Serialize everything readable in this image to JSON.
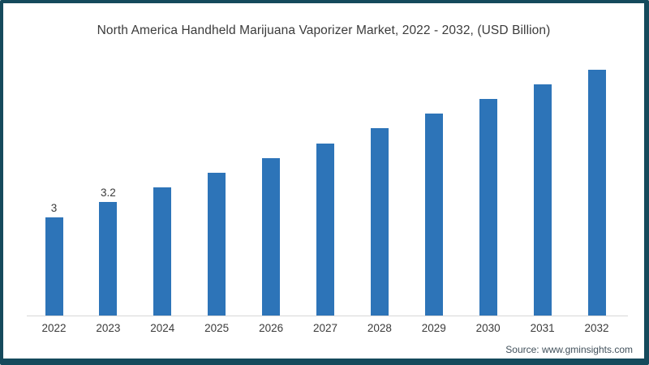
{
  "chart": {
    "title": "North America Handheld Marijuana Vaporizer Market, 2022 - 2032, (USD Billion)",
    "source": "Source: www.gminsights.com"
  },
  "colors": {
    "bar": "#2d74b8",
    "frame_border": "#154a5c",
    "axis_line": "#d8d8d8",
    "text": "#3b3b3b",
    "source_text": "#41505b"
  },
  "chart_data": {
    "type": "bar",
    "title": "North America Handheld Marijuana Vaporizer Market, 2022 - 2032, (USD Billion)",
    "categories": [
      "2022",
      "2023",
      "2024",
      "2025",
      "2026",
      "2027",
      "2028",
      "2029",
      "2030",
      "2031",
      "2032"
    ],
    "values": [
      3.0,
      3.2,
      3.4,
      3.6,
      3.8,
      4.0,
      4.2,
      4.4,
      4.6,
      4.8,
      5.0
    ],
    "data_labels": [
      "3",
      "3.2",
      "",
      "",
      "",
      "",
      "",
      "",
      "",
      "",
      ""
    ],
    "xlabel": "",
    "ylabel": "",
    "ylim": [
      1.665,
      5.0
    ],
    "grid": false,
    "legend": false,
    "y_axis_shown": false,
    "bar_color": "#2d74b8"
  }
}
